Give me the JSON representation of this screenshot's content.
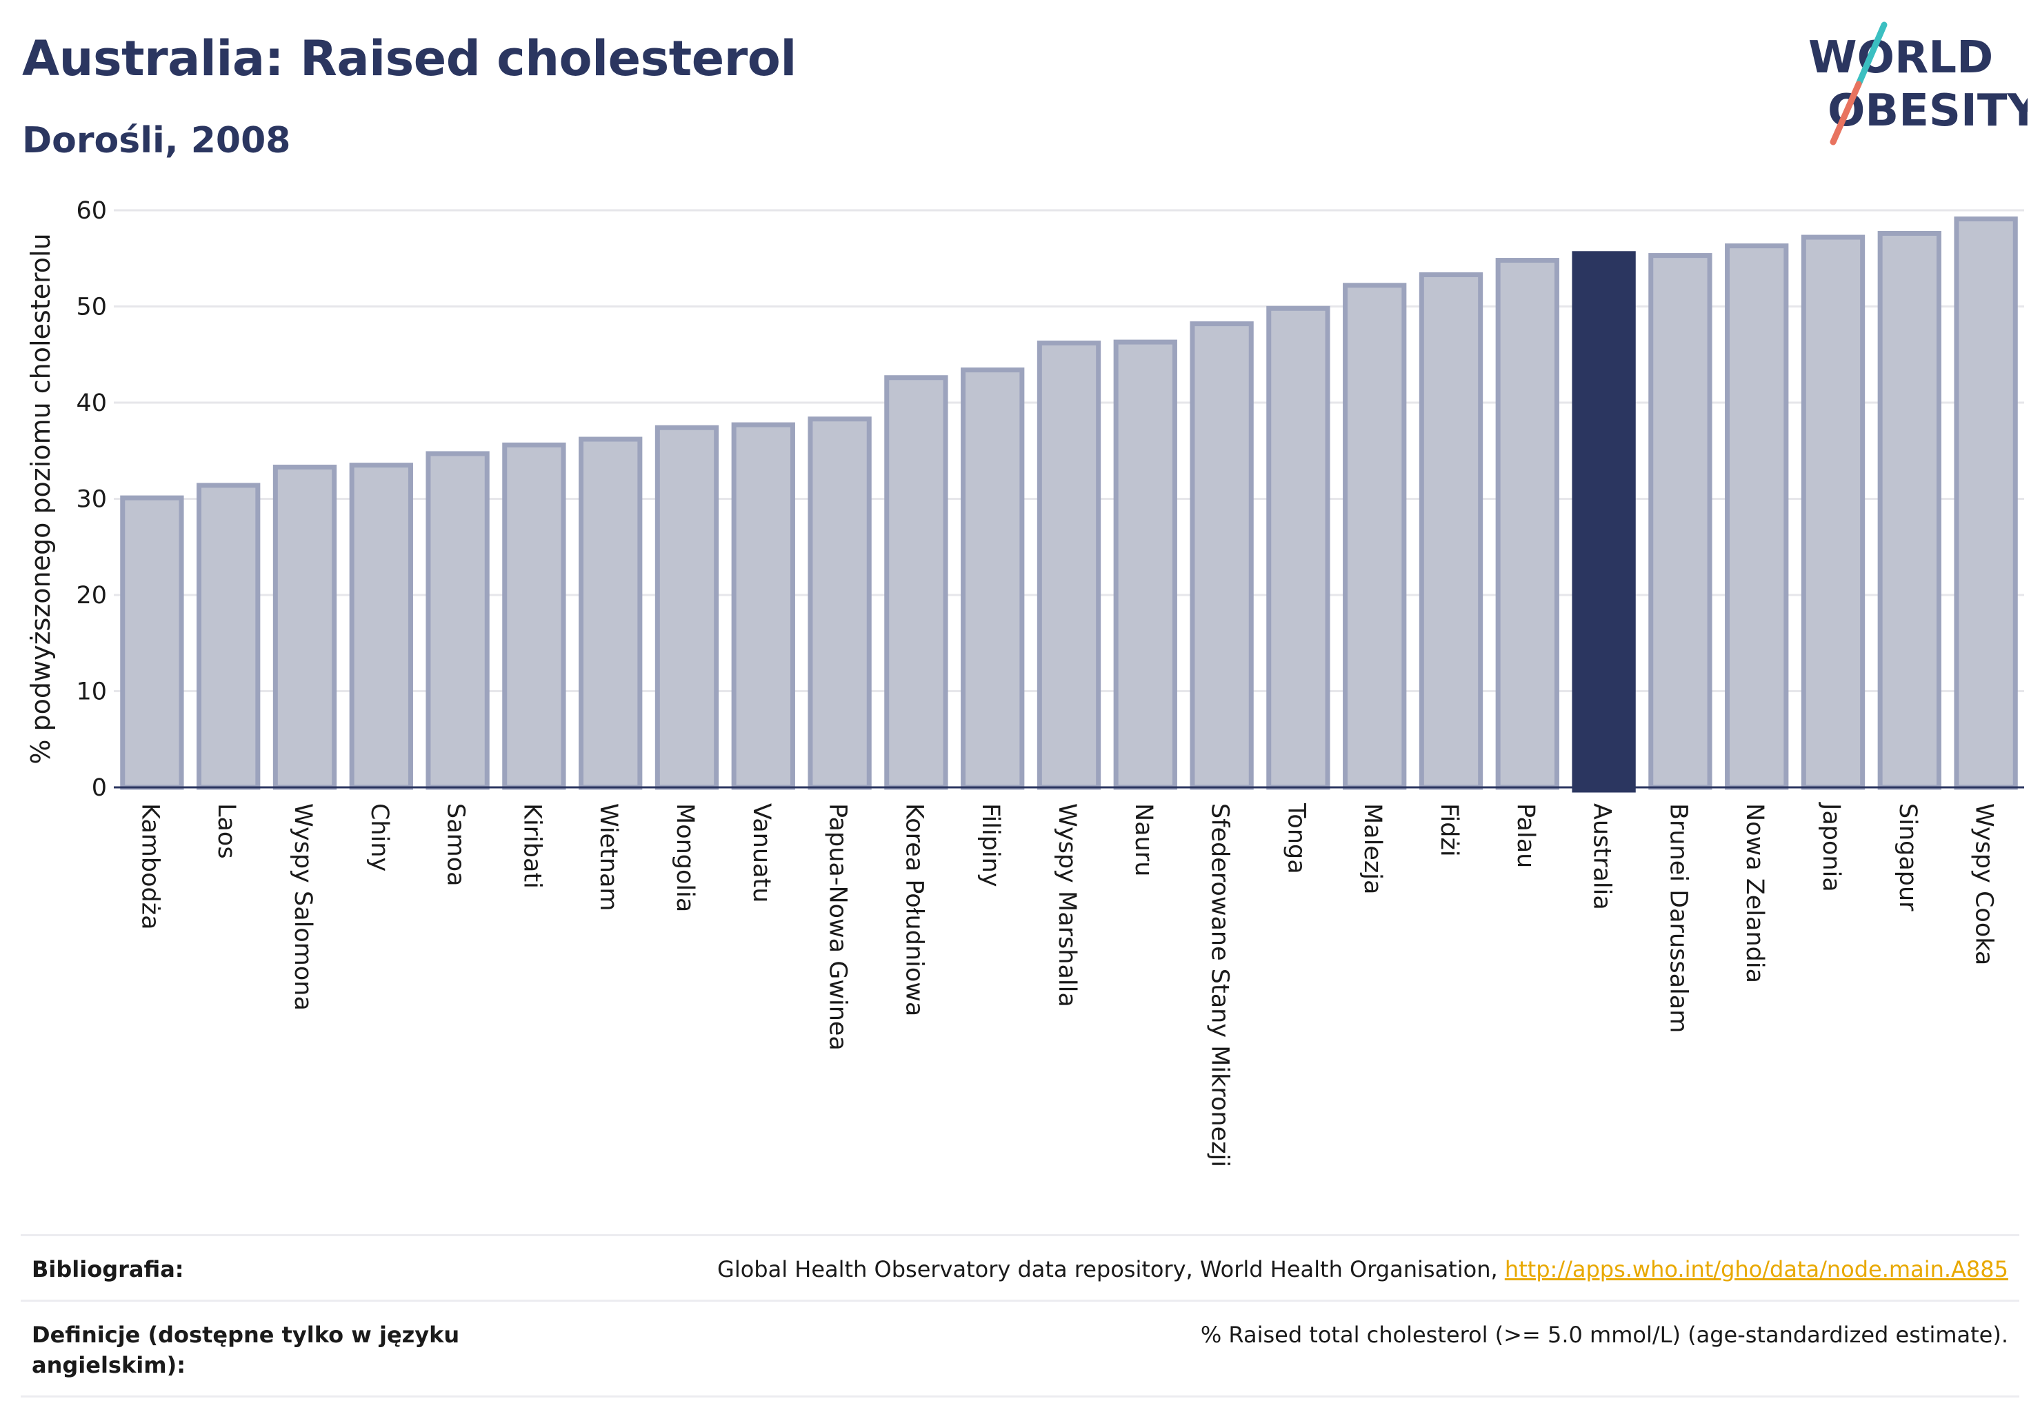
{
  "header": {
    "title": "Australia: Raised cholesterol",
    "subtitle": "Dorośli, 2008"
  },
  "logo": {
    "line1": "WORLD",
    "line2": "OBESITY",
    "accent_teal": "#3bbfc1",
    "accent_coral": "#e8735f"
  },
  "colors": {
    "bar": "#bfc3d0",
    "bar_stroke": "#9ca3bd",
    "highlight": "#2b3660",
    "grid": "#e6e6ea",
    "axis": "#2b3660"
  },
  "chart_data": {
    "type": "bar",
    "ylabel": "% podwyższonego poziomu cholesterolu",
    "ylim": [
      0,
      60
    ],
    "yticks": [
      0,
      10,
      20,
      30,
      40,
      50,
      60
    ],
    "grid": true,
    "highlight": "Australia",
    "categories": [
      "Kambodża",
      "Laos",
      "Wyspy Salomona",
      "Chiny",
      "Samoa",
      "Kiribati",
      "Wietnam",
      "Mongolia",
      "Vanuatu",
      "Papua-Nowa Gwinea",
      "Korea Południowa",
      "Filipiny",
      "Wyspy Marshalla",
      "Nauru",
      "Sfederowane Stany Mikronezji",
      "Tonga",
      "Malezja",
      "Fidżi",
      "Palau",
      "Australia",
      "Brunei Darussalam",
      "Nowa Zelandia",
      "Japonia",
      "Singapur",
      "Wyspy Cooka"
    ],
    "values": [
      30.1,
      31.4,
      33.3,
      33.5,
      34.7,
      35.6,
      36.2,
      37.4,
      37.7,
      38.3,
      42.6,
      43.4,
      46.2,
      46.3,
      48.2,
      49.8,
      52.2,
      53.3,
      54.8,
      55.5,
      55.3,
      56.3,
      57.2,
      57.6,
      59.1
    ]
  },
  "footer": {
    "bibliography_label": "Bibliografia:",
    "bibliography_text": "Global Health Observatory data repository, World Health Organisation, ",
    "bibliography_link": "http://apps.who.int/gho/data/node.main.A885",
    "definitions_label": "Definicje (dostępne tylko w języku angielskim):",
    "definitions_text": "% Raised total cholesterol (>= 5.0 mmol/L) (age-standardized estimate)."
  }
}
